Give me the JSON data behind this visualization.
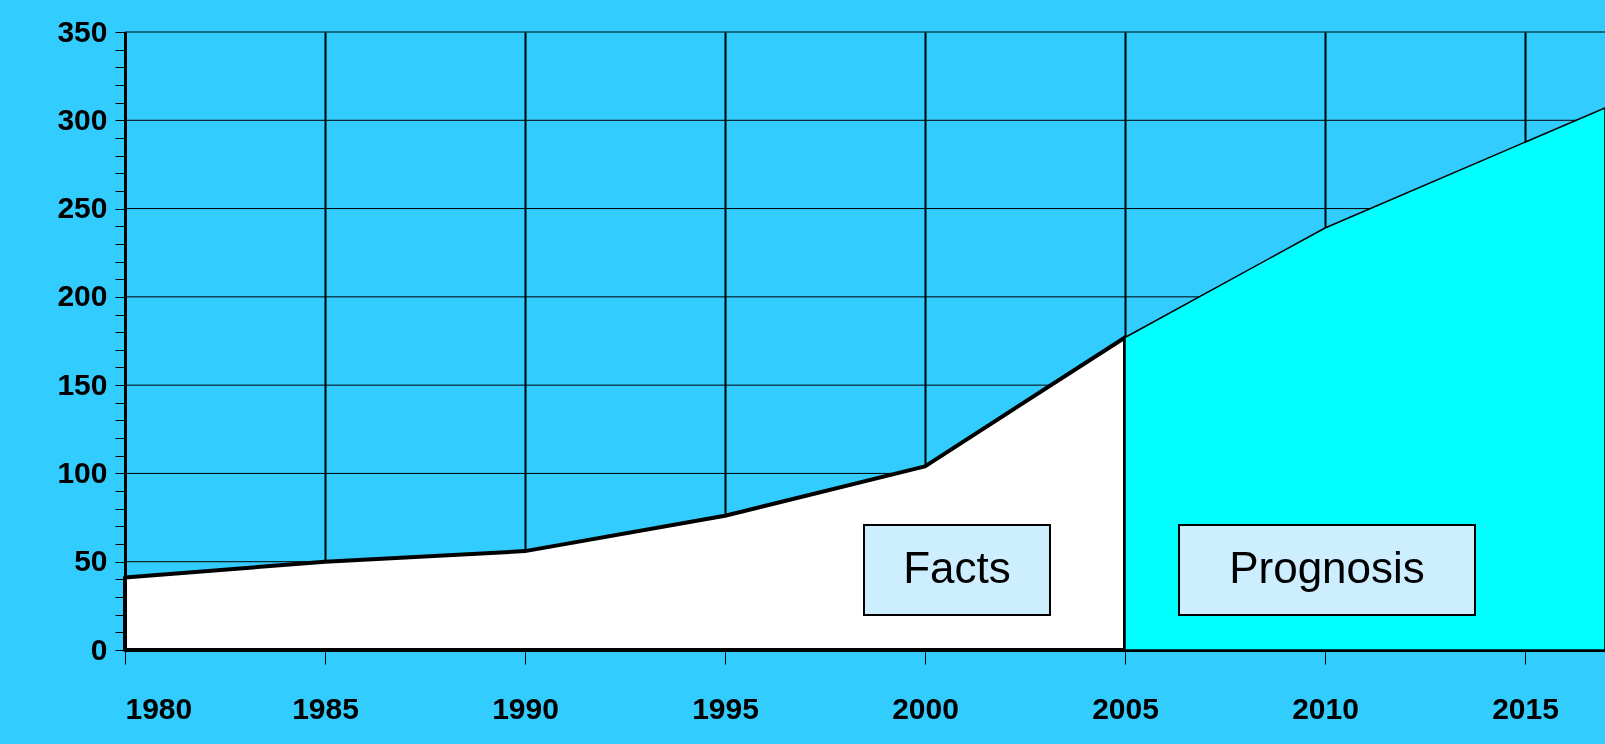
{
  "chart_data": {
    "type": "area",
    "series": [
      {
        "name": "Facts",
        "color": "#ffffff",
        "x": [
          1980,
          1985,
          1990,
          1995,
          2000,
          2005
        ],
        "values": [
          41,
          50,
          56,
          76,
          104,
          177
        ]
      },
      {
        "name": "Prognosis",
        "color": "#00ffff",
        "x": [
          2005,
          2010,
          2017
        ],
        "values": [
          177,
          239,
          307
        ]
      }
    ],
    "xlim": [
      1980,
      2017
    ],
    "xticks": [
      1980,
      1985,
      1990,
      1995,
      2000,
      2005,
      2010,
      2015
    ],
    "ylim": [
      0,
      350
    ],
    "yticks": [
      0,
      {
        "value": 10,
        "label": null
      },
      {
        "value": 20,
        "label": null
      },
      {
        "value": 30,
        "label": null
      },
      {
        "value": 40,
        "label": null
      },
      50,
      {
        "value": 60,
        "label": null
      },
      {
        "value": 70,
        "label": null
      },
      {
        "value": 80,
        "label": null
      },
      {
        "value": 90,
        "label": null
      },
      100,
      {
        "value": 110,
        "label": null
      },
      {
        "value": 120,
        "label": null
      },
      {
        "value": 130,
        "label": null
      },
      {
        "value": 140,
        "label": null
      },
      150,
      {
        "value": 160,
        "label": null
      },
      {
        "value": 170,
        "label": null
      },
      {
        "value": 180,
        "label": null
      },
      {
        "value": 190,
        "label": null
      },
      200,
      {
        "value": 210,
        "label": null
      },
      {
        "value": 220,
        "label": null
      },
      {
        "value": 230,
        "label": null
      },
      {
        "value": 240,
        "label": null
      },
      250,
      {
        "value": 260,
        "label": null
      },
      {
        "value": 270,
        "label": null
      },
      {
        "value": 280,
        "label": null
      },
      {
        "value": 290,
        "label": null
      },
      300,
      {
        "value": 310,
        "label": null
      },
      {
        "value": 320,
        "label": null
      },
      {
        "value": 330,
        "label": null
      },
      {
        "value": 340,
        "label": null
      },
      350
    ],
    "grid": true
  }
}
